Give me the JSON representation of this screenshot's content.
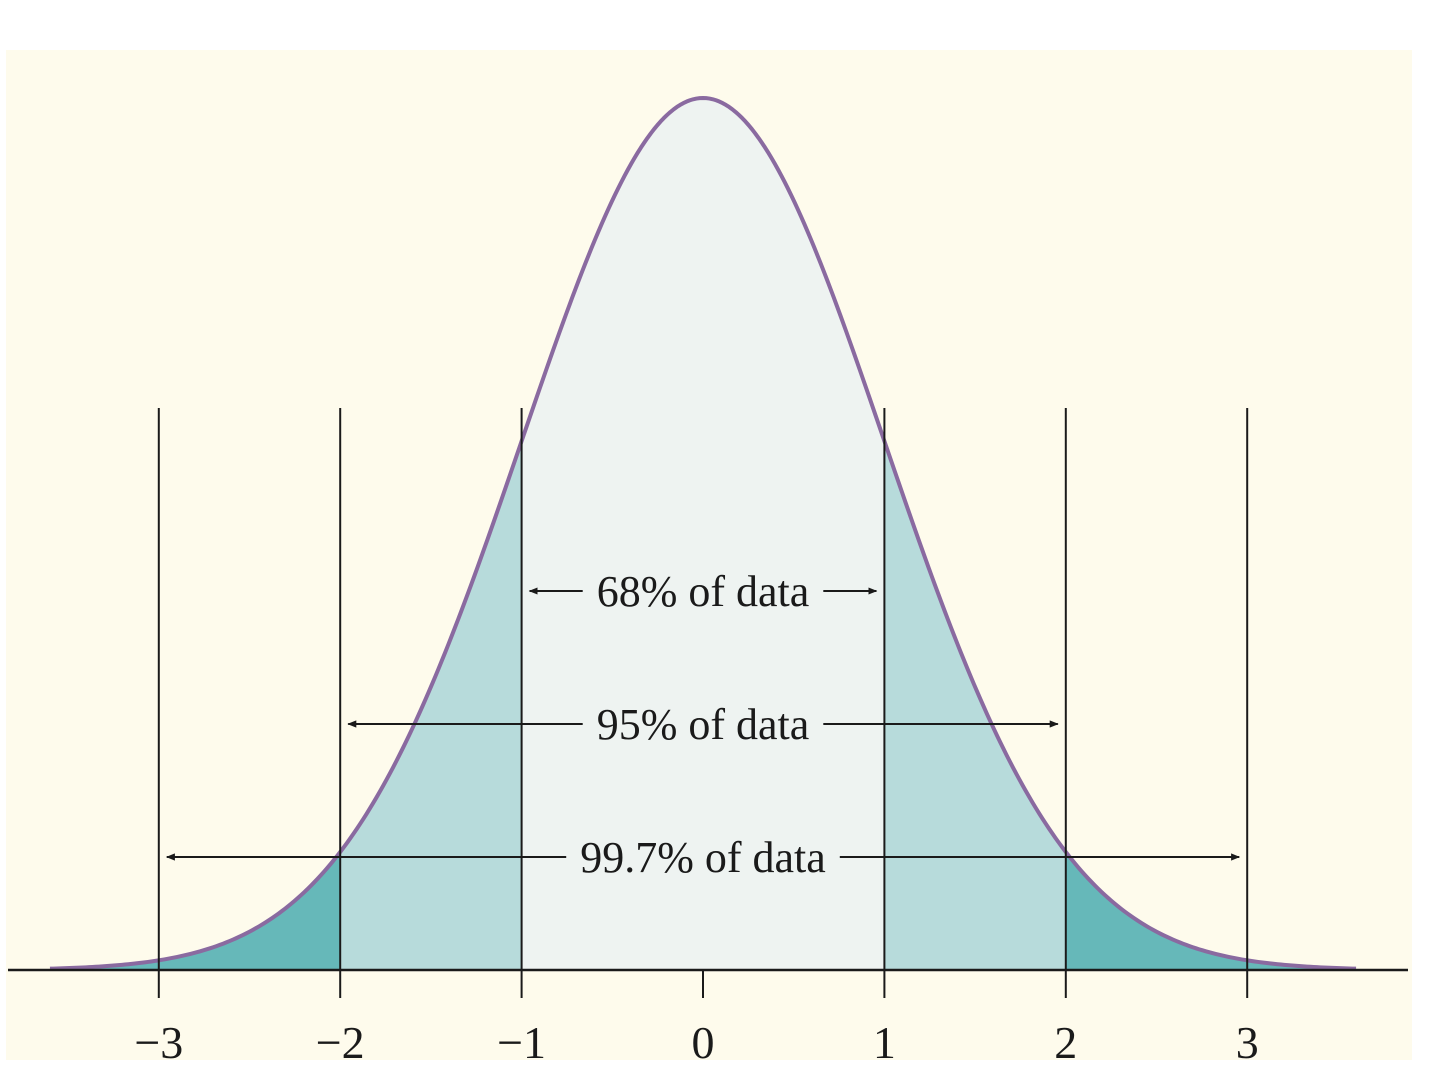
{
  "colors": {
    "page_background": "#ffffff",
    "panel_background": "#fefbec",
    "center_band_fill": "#eef3f1",
    "one_to_two_sd_fill": "#b7dbdb",
    "beyond_two_sd_fill": "#66b8b9",
    "curve_stroke": "#8a6aa0",
    "line_color": "#1a1a1a"
  },
  "chart_data": {
    "type": "area",
    "distribution": "standard normal",
    "mean": 0,
    "sd": 1,
    "xlim": [
      -3.6,
      3.6
    ],
    "x_ticks": [
      -3,
      -2,
      -1,
      0,
      1,
      2,
      3
    ],
    "x_tick_labels": [
      "−3",
      "−2",
      "−1",
      "0",
      "1",
      "2",
      "3"
    ],
    "vertical_markers": [
      -3,
      -2,
      -1,
      1,
      2,
      3
    ],
    "bands": [
      {
        "from": -1,
        "to": 1,
        "color_key": "center_band_fill"
      },
      {
        "from": -2,
        "to": -1,
        "color_key": "one_to_two_sd_fill"
      },
      {
        "from": 1,
        "to": 2,
        "color_key": "one_to_two_sd_fill"
      },
      {
        "from": -3.6,
        "to": -2,
        "color_key": "beyond_two_sd_fill"
      },
      {
        "from": 2,
        "to": 3.6,
        "color_key": "beyond_two_sd_fill"
      }
    ],
    "annotations": [
      {
        "label": "68% of data",
        "from": -1,
        "to": 1
      },
      {
        "label": "95% of data",
        "from": -2,
        "to": 2
      },
      {
        "label": "99.7% of data",
        "from": -3,
        "to": 3
      }
    ]
  }
}
